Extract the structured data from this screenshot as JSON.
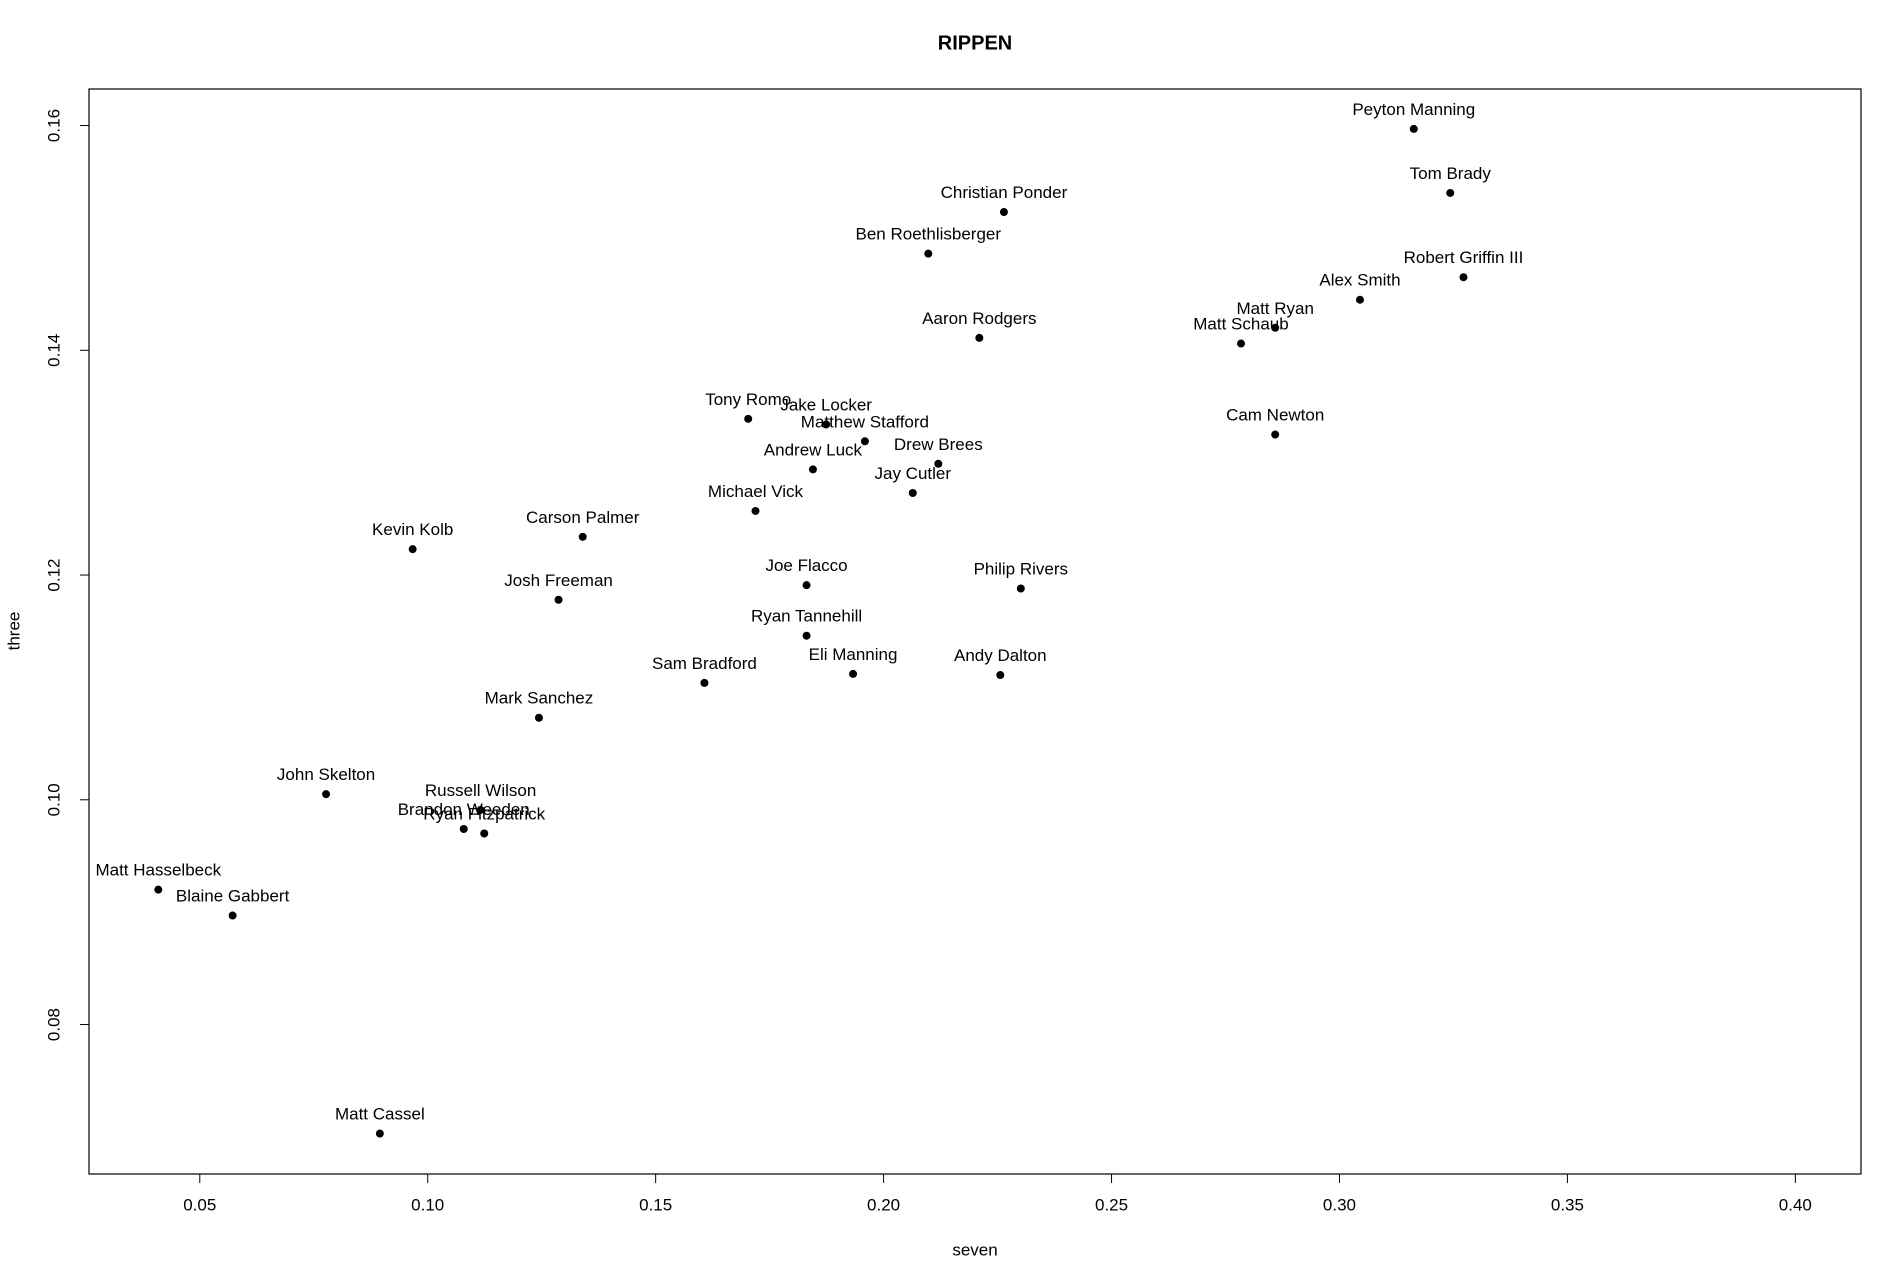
{
  "chart_data": {
    "type": "scatter",
    "title": "RIPPEN",
    "xlabel": "seven",
    "ylabel": "three",
    "labels": [
      "Peyton Manning",
      "Tom Brady",
      "Christian Ponder",
      "Ben Roethlisberger",
      "Robert Griffin III",
      "Alex Smith",
      "Matt Ryan",
      "Matt Schaub",
      "Aaron Rodgers",
      "Cam Newton",
      "Tony Romo",
      "Jake Locker",
      "Matthew Stafford",
      "Drew Brees",
      "Andrew Luck",
      "Jay Cutler",
      "Michael Vick",
      "Carson Palmer",
      "Kevin Kolb",
      "Joe Flacco",
      "Philip Rivers",
      "Josh Freeman",
      "Ryan Tannehill",
      "Eli Manning",
      "Andy Dalton",
      "Sam Bradford",
      "Mark Sanchez",
      "John Skelton",
      "Russell Wilson",
      "Brandon Weeden",
      "Ryan Fitzpatrick",
      "Matt Hasselbeck",
      "Blaine Gabbert",
      "Matt Cassel"
    ],
    "x": [
      0.3163,
      0.3243,
      0.2264,
      0.2098,
      0.3272,
      0.3045,
      0.2859,
      0.2784,
      0.221,
      0.2859,
      0.1703,
      0.1874,
      0.1959,
      0.212,
      0.1845,
      0.2064,
      0.1719,
      0.134,
      0.0967,
      0.1831,
      0.2301,
      0.1287,
      0.1831,
      0.1933,
      0.2256,
      0.1607,
      0.1244,
      0.0777,
      0.1116,
      0.1079,
      0.1124,
      0.0409,
      0.0572,
      0.0895
    ],
    "y": [
      0.1597,
      0.154,
      0.1523,
      0.1486,
      0.1465,
      0.1445,
      0.142,
      0.1406,
      0.1411,
      0.1325,
      0.1339,
      0.1334,
      0.1319,
      0.1299,
      0.1294,
      0.1273,
      0.1257,
      0.1234,
      0.1223,
      0.1191,
      0.1188,
      0.1178,
      0.1146,
      0.1112,
      0.1111,
      0.1104,
      0.1073,
      0.1005,
      0.0991,
      0.0974,
      0.097,
      0.092,
      0.0897,
      0.0703
    ],
    "color": "#000000",
    "xlim": [
      0.0257,
      0.4144
    ],
    "ylim": [
      0.0667,
      0.16325
    ],
    "xticks": [
      0.05,
      {
        "value": 0.1,
        "label": "0.10"
      },
      0.15,
      {
        "value": 0.2,
        "label": "0.20"
      },
      0.25,
      {
        "value": 0.3,
        "label": "0.30"
      },
      0.35,
      {
        "value": 0.4,
        "label": "0.40"
      }
    ],
    "yticks": [
      0.08,
      {
        "value": 0.1,
        "label": "0.10"
      },
      0.12,
      0.14,
      0.16
    ]
  }
}
